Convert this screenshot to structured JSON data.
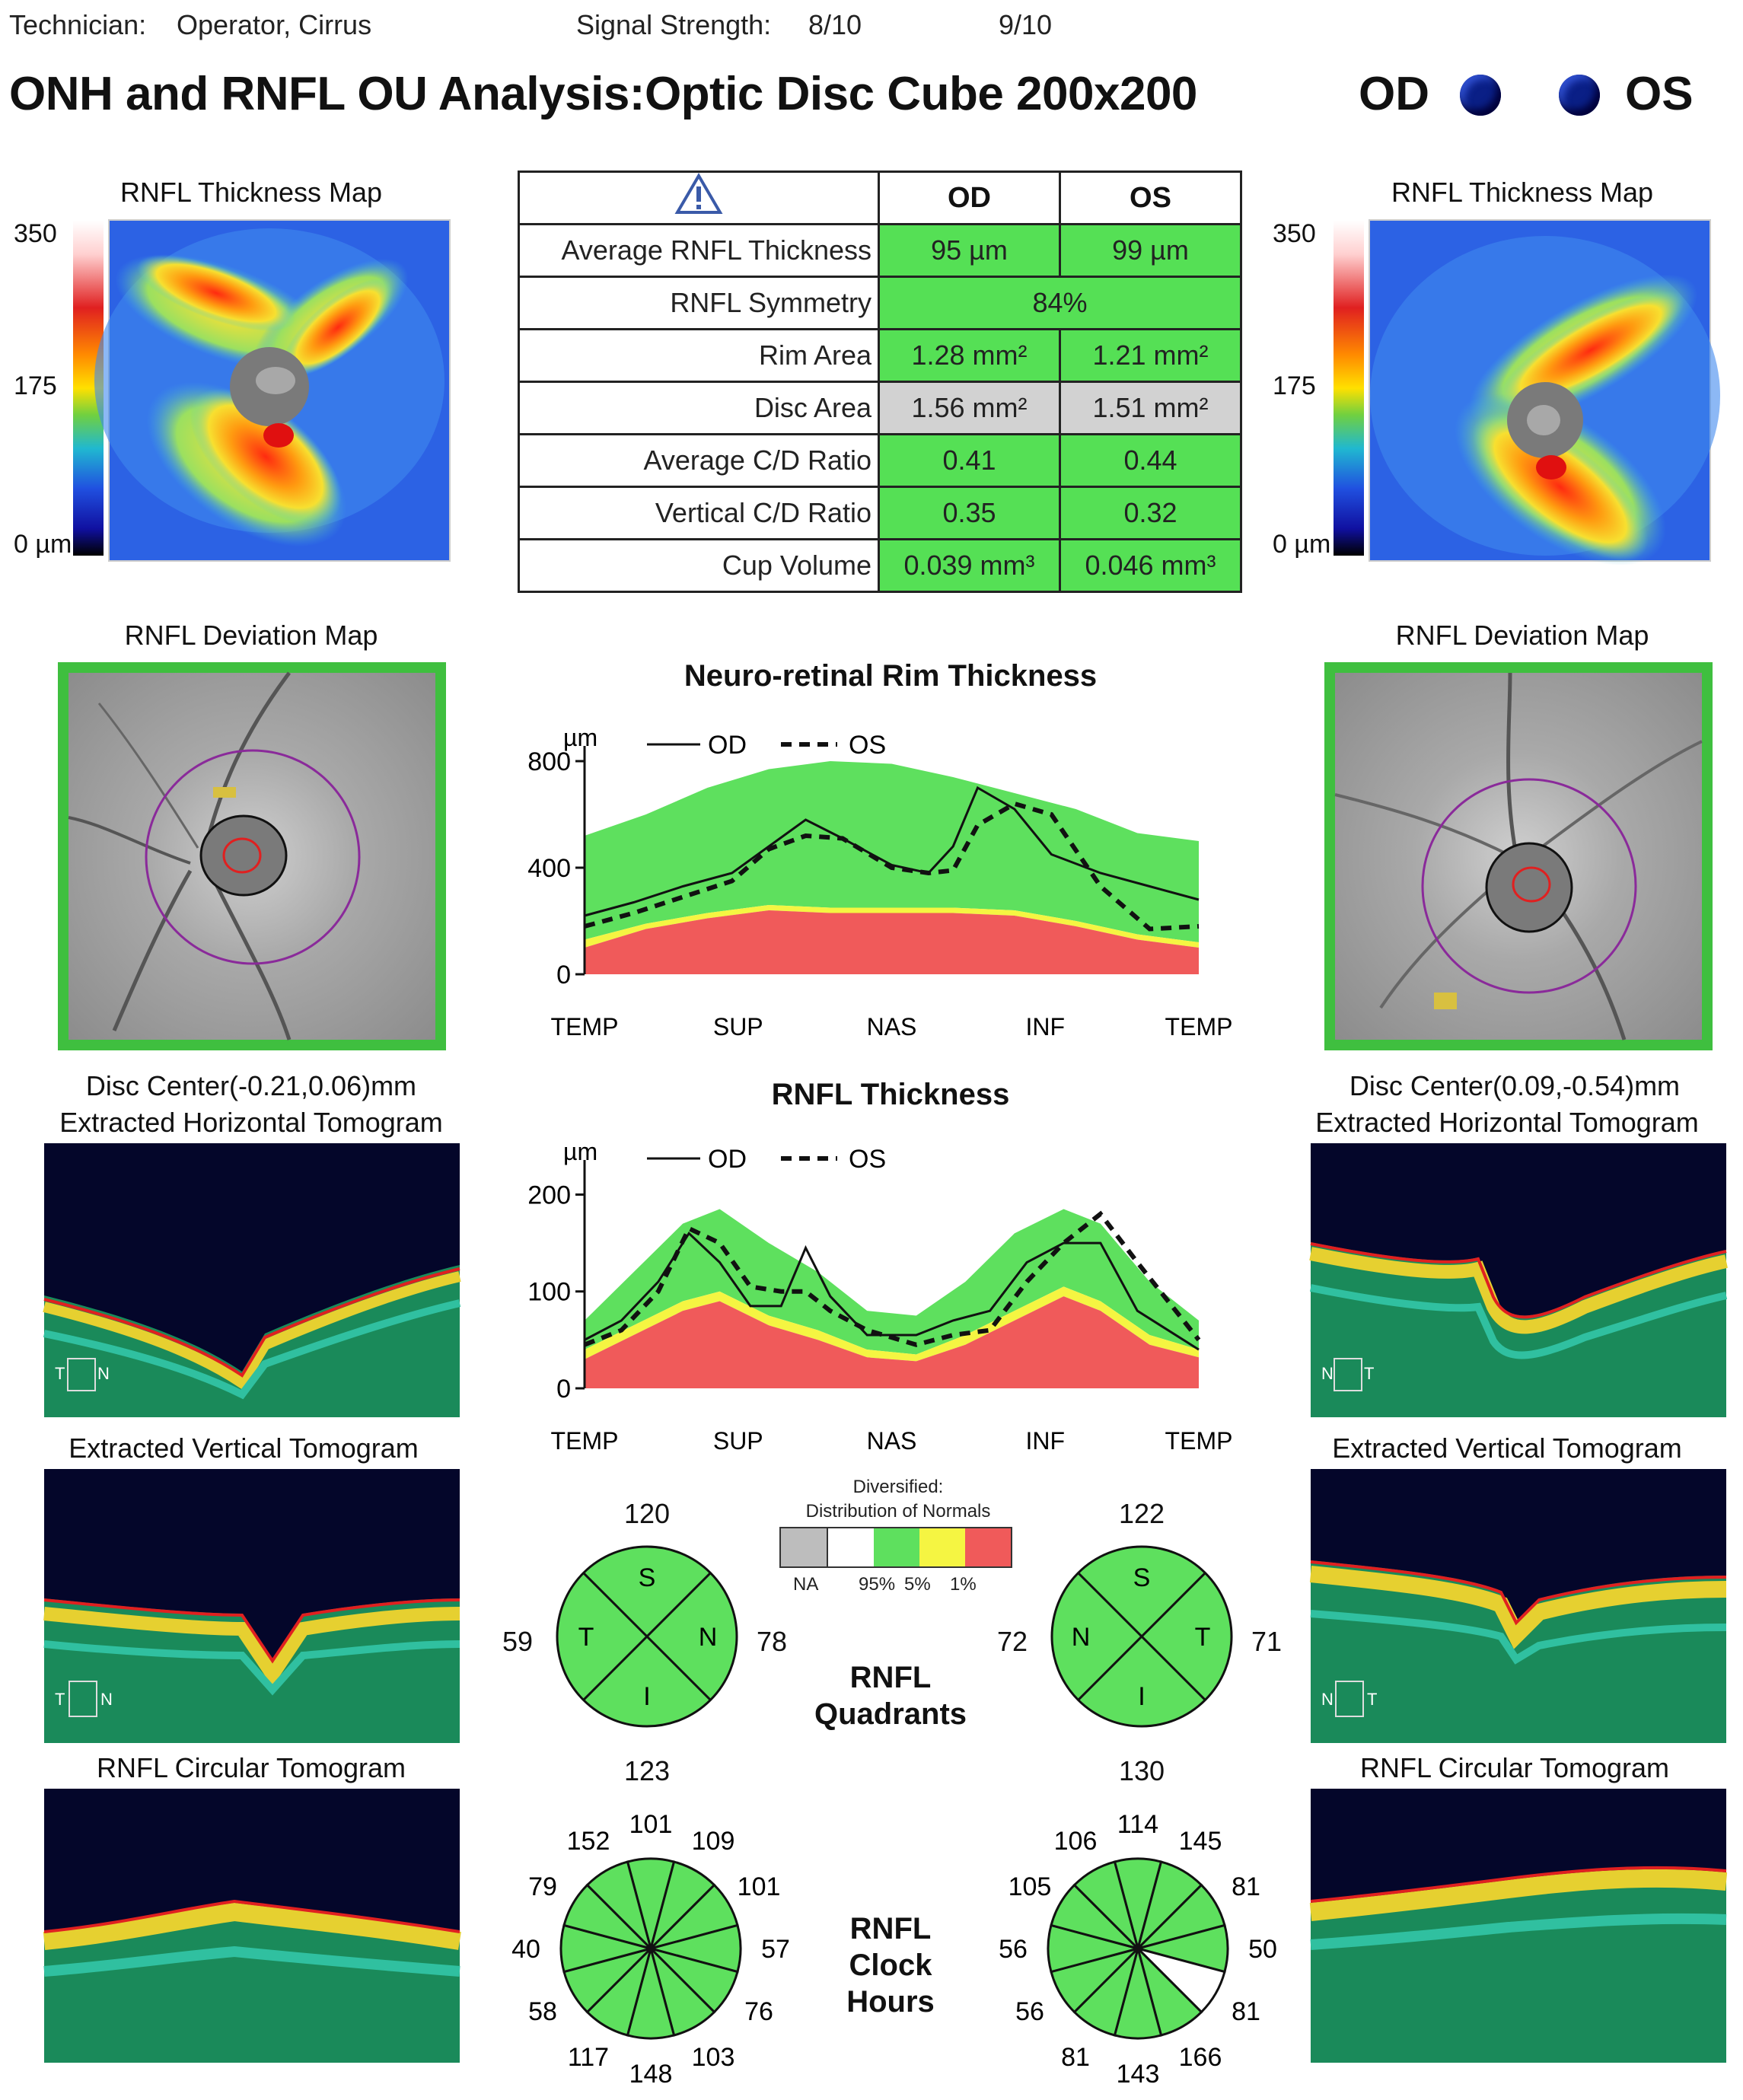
{
  "header": {
    "technician_label": "Technician:",
    "technician_value": "Operator, Cirrus",
    "signal_label": "Signal Strength:",
    "signal_od": "8/10",
    "signal_os": "9/10",
    "title": "ONH and RNFL OU Analysis:Optic Disc Cube 200x200",
    "od_label": "OD",
    "os_label": "OS"
  },
  "od": {
    "thickness_map_title": "RNFL Thickness Map",
    "scale": {
      "max": "350",
      "mid": "175",
      "min": "0 µm"
    },
    "deviation_map_title": "RNFL Deviation Map",
    "disc_center": "Disc Center(-0.21,0.06)mm",
    "horiz_tomo_title": "Extracted Horizontal Tomogram",
    "vert_tomo_title": "Extracted Vertical Tomogram",
    "circ_tomo_title": "RNFL Circular Tomogram",
    "horiz_orient": [
      "T",
      "N"
    ],
    "vert_orient": [
      "T",
      "N"
    ],
    "quadrants": {
      "S": "120",
      "I": "123",
      "T": "59",
      "N": "78",
      "labels": [
        "S",
        "T",
        "N",
        "I"
      ]
    },
    "clock_hours": [
      "101",
      "109",
      "101",
      "57",
      "76",
      "103",
      "148",
      "117",
      "58",
      "40",
      "79",
      "152"
    ]
  },
  "os": {
    "thickness_map_title": "RNFL Thickness Map",
    "scale": {
      "max": "350",
      "mid": "175",
      "min": "0 µm"
    },
    "deviation_map_title": "RNFL Deviation Map",
    "disc_center": "Disc Center(0.09,-0.54)mm",
    "horiz_tomo_title": "Extracted Horizontal Tomogram",
    "vert_tomo_title": "Extracted Vertical Tomogram",
    "circ_tomo_title": "RNFL Circular Tomogram",
    "horiz_orient": [
      "N",
      "T"
    ],
    "vert_orient": [
      "N",
      "T"
    ],
    "quadrants": {
      "S": "122",
      "I": "130",
      "N": "72",
      "T": "71",
      "labels": [
        "S",
        "N",
        "T",
        "I"
      ]
    },
    "clock_hours": [
      "114",
      "145",
      "81",
      "50",
      "81",
      "166",
      "143",
      "81",
      "56",
      "56",
      "105",
      "106"
    ]
  },
  "table": {
    "headers": [
      "OD",
      "OS"
    ],
    "rows": [
      {
        "label": "Average RNFL Thickness",
        "od": "95 µm",
        "os": "99 µm"
      },
      {
        "label": "RNFL Symmetry",
        "merged": "84%"
      },
      {
        "label": "Rim Area",
        "od": "1.28 mm²",
        "os": "1.21 mm²"
      },
      {
        "label": "Disc Area",
        "od": "1.56 mm²",
        "os": "1.51 mm²"
      },
      {
        "label": "Average C/D Ratio",
        "od": "0.41",
        "os": "0.44"
      },
      {
        "label": "Vertical C/D Ratio",
        "od": "0.35",
        "os": "0.32"
      },
      {
        "label": "Cup Volume",
        "od": "0.039 mm³",
        "os": "0.046 mm³"
      }
    ]
  },
  "legend": {
    "title_line1": "Diversified:",
    "title_line2": "Distribution of Normals",
    "labels": [
      "NA",
      "95%",
      "5%",
      "1%"
    ],
    "colors": [
      "#bdbdbd",
      "#ffffff",
      "#5ee05e",
      "#f5f542",
      "#f05a5a"
    ]
  },
  "quadrants_label": [
    "RNFL",
    "Quadrants"
  ],
  "clock_label": [
    "RNFL",
    "Clock",
    "Hours"
  ],
  "chart_data": [
    {
      "type": "line",
      "title": "Neuro-retinal Rim Thickness",
      "ylabel": "µm",
      "ylim": [
        0,
        800
      ],
      "yticks": [
        "800",
        "400",
        "0"
      ],
      "xticks": [
        "TEMP",
        "SUP",
        "NAS",
        "INF",
        "TEMP"
      ],
      "legend": [
        "OD",
        "OS"
      ],
      "bands": {
        "x": [
          0,
          0.1,
          0.2,
          0.3,
          0.4,
          0.5,
          0.6,
          0.7,
          0.8,
          0.9,
          1.0
        ],
        "p95": [
          520,
          600,
          700,
          770,
          800,
          790,
          740,
          680,
          620,
          530,
          500
        ],
        "p5": [
          130,
          190,
          230,
          260,
          250,
          250,
          250,
          240,
          200,
          150,
          120
        ],
        "p1": [
          100,
          170,
          210,
          240,
          230,
          230,
          230,
          220,
          180,
          130,
          100
        ]
      },
      "series": [
        {
          "name": "OD",
          "x": [
            0,
            0.08,
            0.16,
            0.24,
            0.3,
            0.36,
            0.42,
            0.5,
            0.56,
            0.6,
            0.64,
            0.7,
            0.76,
            0.84,
            0.92,
            1.0
          ],
          "values": [
            220,
            270,
            330,
            380,
            480,
            580,
            510,
            410,
            380,
            480,
            700,
            620,
            450,
            380,
            330,
            280
          ]
        },
        {
          "name": "OS",
          "x": [
            0,
            0.08,
            0.16,
            0.24,
            0.3,
            0.36,
            0.42,
            0.5,
            0.56,
            0.6,
            0.64,
            0.7,
            0.76,
            0.84,
            0.92,
            1.0
          ],
          "values": [
            180,
            230,
            290,
            350,
            470,
            520,
            510,
            400,
            380,
            390,
            560,
            640,
            600,
            330,
            170,
            180
          ]
        }
      ]
    },
    {
      "type": "line",
      "title": "RNFL Thickness",
      "ylabel": "µm",
      "ylim": [
        0,
        220
      ],
      "yticks": [
        "200",
        "100",
        "0"
      ],
      "xticks": [
        "TEMP",
        "SUP",
        "NAS",
        "INF",
        "TEMP"
      ],
      "legend": [
        "OD",
        "OS"
      ],
      "bands": {
        "x": [
          0,
          0.08,
          0.16,
          0.22,
          0.3,
          0.38,
          0.46,
          0.54,
          0.62,
          0.7,
          0.78,
          0.84,
          0.92,
          1.0
        ],
        "p95": [
          70,
          120,
          170,
          185,
          150,
          120,
          80,
          75,
          110,
          160,
          185,
          170,
          110,
          70
        ],
        "p5": [
          40,
          65,
          90,
          100,
          75,
          60,
          40,
          35,
          55,
          80,
          105,
          90,
          55,
          40
        ],
        "p1": [
          30,
          55,
          80,
          90,
          65,
          50,
          32,
          28,
          45,
          70,
          95,
          80,
          45,
          32
        ]
      },
      "series": [
        {
          "name": "OD",
          "x": [
            0,
            0.06,
            0.12,
            0.17,
            0.22,
            0.27,
            0.32,
            0.36,
            0.4,
            0.46,
            0.54,
            0.6,
            0.66,
            0.72,
            0.78,
            0.84,
            0.9,
            1.0
          ],
          "values": [
            50,
            70,
            110,
            160,
            130,
            85,
            85,
            145,
            95,
            55,
            55,
            70,
            80,
            130,
            150,
            150,
            80,
            40
          ]
        },
        {
          "name": "OS",
          "x": [
            0,
            0.06,
            0.12,
            0.17,
            0.22,
            0.27,
            0.32,
            0.36,
            0.4,
            0.46,
            0.54,
            0.6,
            0.66,
            0.72,
            0.78,
            0.84,
            0.9,
            1.0
          ],
          "values": [
            45,
            60,
            100,
            165,
            150,
            105,
            100,
            100,
            80,
            60,
            45,
            55,
            60,
            110,
            150,
            180,
            130,
            50
          ]
        }
      ]
    }
  ]
}
